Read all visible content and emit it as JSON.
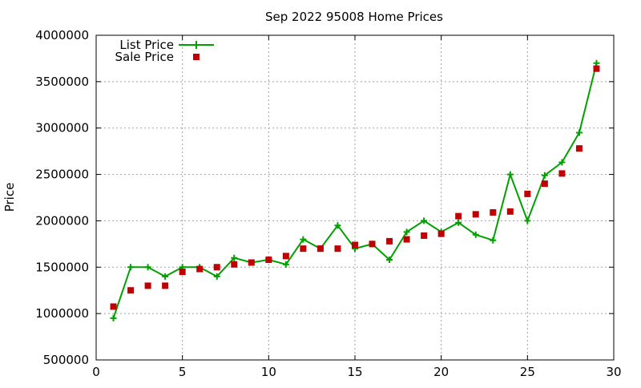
{
  "chart_data": {
    "type": "line",
    "title": "Sep 2022 95008 Home Prices",
    "xlabel": "",
    "ylabel": "Price",
    "xlim": [
      0,
      30
    ],
    "ylim": [
      500000,
      4000000
    ],
    "xticks": [
      0,
      5,
      10,
      15,
      20,
      25,
      30
    ],
    "yticks": [
      500000,
      1000000,
      1500000,
      2000000,
      2500000,
      3000000,
      3500000,
      4000000
    ],
    "grid": true,
    "legend_position": "top-left",
    "x": [
      1,
      2,
      3,
      4,
      5,
      6,
      7,
      8,
      9,
      10,
      11,
      12,
      13,
      14,
      15,
      16,
      17,
      18,
      19,
      20,
      21,
      22,
      23,
      24,
      25,
      26,
      27,
      28,
      29
    ],
    "series": [
      {
        "name": "List Price",
        "style": "line-with-plus-markers",
        "color": "#00a000",
        "values": [
          950000,
          1500000,
          1500000,
          1400000,
          1500000,
          1500000,
          1400000,
          1600000,
          1550000,
          1580000,
          1530000,
          1800000,
          1700000,
          1950000,
          1700000,
          1750000,
          1580000,
          1880000,
          2000000,
          1880000,
          1980000,
          1850000,
          1790000,
          2500000,
          2000000,
          2490000,
          2630000,
          2950000,
          3700000
        ]
      },
      {
        "name": "Sale Price",
        "style": "square-points",
        "color": "#c00000",
        "values": [
          1075000,
          1250000,
          1300000,
          1300000,
          1450000,
          1480000,
          1500000,
          1530000,
          1550000,
          1580000,
          1620000,
          1700000,
          1700000,
          1700000,
          1740000,
          1750000,
          1780000,
          1800000,
          1840000,
          1860000,
          2050000,
          2070000,
          2090000,
          2100000,
          2290000,
          2400000,
          2510000,
          2780000,
          3640000
        ]
      }
    ]
  }
}
